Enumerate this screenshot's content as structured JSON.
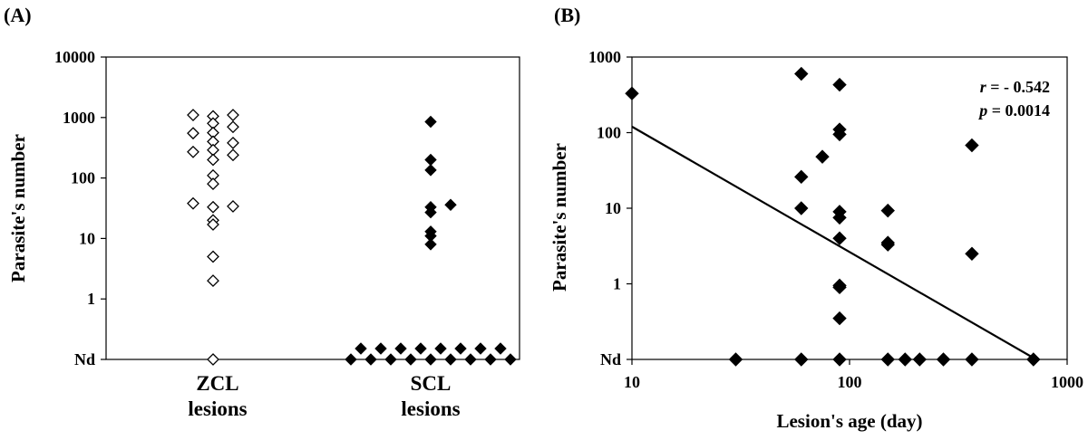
{
  "chart_data": [
    {
      "panel": "(A)",
      "type": "scatter",
      "ylabel": "Parasite's number",
      "yscale": "log",
      "ylim": [
        0.1,
        10000
      ],
      "yticks": [
        {
          "value": 0.1,
          "label": "Nd"
        },
        {
          "value": 1,
          "label": "1"
        },
        {
          "value": 10,
          "label": "10"
        },
        {
          "value": 100,
          "label": "100"
        },
        {
          "value": 1000,
          "label": "1000"
        },
        {
          "value": 10000,
          "label": "10000"
        }
      ],
      "categories": [
        {
          "line1": "ZCL",
          "line2": "lesions"
        },
        {
          "line1": "SCL",
          "line2": "lesions"
        }
      ],
      "series": [
        {
          "category": 0,
          "marker": "hollow-diamond",
          "points": [
            {
              "offset": -1,
              "y": 1100
            },
            {
              "offset": -1,
              "y": 550
            },
            {
              "offset": -1,
              "y": 270
            },
            {
              "offset": -1,
              "y": 38
            },
            {
              "offset": 0,
              "y": 1050
            },
            {
              "offset": 0,
              "y": 800
            },
            {
              "offset": 0,
              "y": 560
            },
            {
              "offset": 0,
              "y": 400
            },
            {
              "offset": 0,
              "y": 290
            },
            {
              "offset": 0,
              "y": 200
            },
            {
              "offset": 0,
              "y": 110
            },
            {
              "offset": 0,
              "y": 80
            },
            {
              "offset": 0,
              "y": 33
            },
            {
              "offset": 0,
              "y": 20
            },
            {
              "offset": 0,
              "y": 17
            },
            {
              "offset": 0,
              "y": 5
            },
            {
              "offset": 0,
              "y": 2
            },
            {
              "offset": 0,
              "y": 0.1
            },
            {
              "offset": 1,
              "y": 1100
            },
            {
              "offset": 1,
              "y": 700
            },
            {
              "offset": 1,
              "y": 380
            },
            {
              "offset": 1,
              "y": 240
            },
            {
              "offset": 1,
              "y": 34
            }
          ]
        },
        {
          "category": 1,
          "marker": "filled-diamond",
          "points": [
            {
              "offset": 0,
              "y": 850
            },
            {
              "offset": 0,
              "y": 200
            },
            {
              "offset": 0,
              "y": 135
            },
            {
              "offset": 0,
              "y": 33
            },
            {
              "offset": 0,
              "y": 27
            },
            {
              "offset": 0,
              "y": 13
            },
            {
              "offset": 0,
              "y": 11
            },
            {
              "offset": 0,
              "y": 8
            },
            {
              "offset": 1,
              "y": 36
            },
            {
              "offset": -4,
              "y": 0.1
            },
            {
              "offset": -3,
              "y": 0.1
            },
            {
              "offset": -2,
              "y": 0.1
            },
            {
              "offset": -1,
              "y": 0.1
            },
            {
              "offset": 0,
              "y": 0.1
            },
            {
              "offset": 1,
              "y": 0.1
            },
            {
              "offset": 2,
              "y": 0.1
            },
            {
              "offset": 3,
              "y": 0.1
            },
            {
              "offset": 4,
              "y": 0.1
            },
            {
              "offset": -3.5,
              "y": 0.15
            },
            {
              "offset": -2.5,
              "y": 0.15
            },
            {
              "offset": -1.5,
              "y": 0.15
            },
            {
              "offset": -0.5,
              "y": 0.15
            },
            {
              "offset": 0.5,
              "y": 0.15
            },
            {
              "offset": 1.5,
              "y": 0.15
            },
            {
              "offset": 2.5,
              "y": 0.15
            },
            {
              "offset": 3.5,
              "y": 0.15
            }
          ]
        }
      ]
    },
    {
      "panel": "(B)",
      "type": "scatter",
      "xlabel": "Lesion's age (day)",
      "ylabel": "Parasite's number",
      "xscale": "log",
      "yscale": "log",
      "xlim": [
        10,
        1000
      ],
      "ylim": [
        0.1,
        1000
      ],
      "xticks": [
        {
          "value": 10,
          "label": "10"
        },
        {
          "value": 100,
          "label": "100"
        },
        {
          "value": 1000,
          "label": "1000"
        }
      ],
      "yticks": [
        {
          "value": 0.1,
          "label": "Nd"
        },
        {
          "value": 1,
          "label": "1"
        },
        {
          "value": 10,
          "label": "10"
        },
        {
          "value": 100,
          "label": "100"
        },
        {
          "value": 1000,
          "label": "1000"
        }
      ],
      "points": [
        {
          "x": 10,
          "y": 330
        },
        {
          "x": 30,
          "y": 0.1
        },
        {
          "x": 60,
          "y": 600
        },
        {
          "x": 60,
          "y": 26
        },
        {
          "x": 60,
          "y": 10
        },
        {
          "x": 60,
          "y": 0.1
        },
        {
          "x": 75,
          "y": 48
        },
        {
          "x": 90,
          "y": 430
        },
        {
          "x": 90,
          "y": 110
        },
        {
          "x": 90,
          "y": 95
        },
        {
          "x": 90,
          "y": 9
        },
        {
          "x": 90,
          "y": 7.5
        },
        {
          "x": 90,
          "y": 4
        },
        {
          "x": 90,
          "y": 0.95
        },
        {
          "x": 90,
          "y": 0.9
        },
        {
          "x": 90,
          "y": 0.35
        },
        {
          "x": 90,
          "y": 0.1
        },
        {
          "x": 150,
          "y": 9.3
        },
        {
          "x": 150,
          "y": 3.5
        },
        {
          "x": 150,
          "y": 3.3
        },
        {
          "x": 150,
          "y": 0.1
        },
        {
          "x": 180,
          "y": 0.1
        },
        {
          "x": 210,
          "y": 0.1
        },
        {
          "x": 270,
          "y": 0.1
        },
        {
          "x": 365,
          "y": 68
        },
        {
          "x": 365,
          "y": 2.5
        },
        {
          "x": 365,
          "y": 0.1
        },
        {
          "x": 700,
          "y": 0.1
        }
      ],
      "trendline": {
        "type": "power",
        "from": {
          "x": 10,
          "y": 120
        },
        "to": {
          "x": 720,
          "y": 0.1
        }
      },
      "annotation": {
        "r_symbol": "r",
        "r_text": " = - 0.542",
        "p_symbol": "p",
        "p_text": " = 0.0014"
      }
    }
  ]
}
